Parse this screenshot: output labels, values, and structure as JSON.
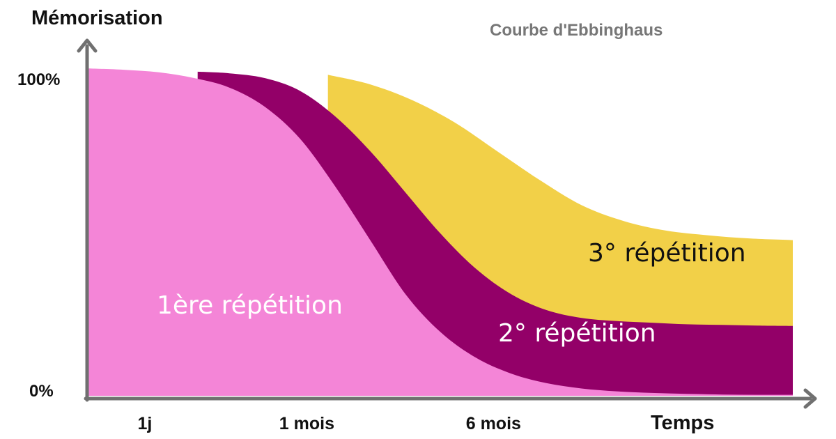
{
  "chart_data": {
    "type": "area",
    "title": "Courbe d'Ebbinghaus",
    "ylabel": "Mémorisation",
    "xlabel": "Temps",
    "y_ticks": [
      "100%",
      "0%"
    ],
    "x_ticks": [
      "1j",
      "1 mois",
      "6 mois"
    ],
    "x_tick_positions": [
      0.08,
      0.31,
      0.575
    ],
    "ylim": [
      0,
      100
    ],
    "xlim": [
      0,
      1
    ],
    "grid": false,
    "legend": "none",
    "series": [
      {
        "name": "3° répétition",
        "color": "#F2D048",
        "label_color": "#111111",
        "x": [
          0.34,
          0.4,
          0.46,
          0.52,
          0.58,
          0.64,
          0.7,
          0.76,
          0.82,
          0.88,
          0.94,
          1.0
        ],
        "y": [
          101,
          98,
          93,
          86,
          77,
          68,
          60,
          55,
          52,
          50.5,
          49.5,
          49
        ]
      },
      {
        "name": "2° répétition",
        "color": "#930068",
        "label_color": "#FFFFFF",
        "x": [
          0.155,
          0.2,
          0.25,
          0.3,
          0.35,
          0.4,
          0.45,
          0.5,
          0.55,
          0.6,
          0.65,
          0.7,
          0.75,
          0.8,
          0.85,
          0.9,
          0.95,
          1.0
        ],
        "y": [
          102,
          101.5,
          100,
          96,
          88,
          77,
          64,
          51,
          40,
          32,
          27,
          24.5,
          23.5,
          23,
          22.5,
          22.3,
          22.1,
          22
        ]
      },
      {
        "name": "1ère répétition",
        "color": "#F485D7",
        "label_color": "#FFFFFF",
        "x": [
          0.0,
          0.05,
          0.1,
          0.15,
          0.2,
          0.25,
          0.3,
          0.35,
          0.4,
          0.45,
          0.5,
          0.55,
          0.6,
          0.65,
          0.7,
          0.75,
          0.8,
          0.85,
          0.9,
          0.95,
          1.0
        ],
        "y": [
          103,
          102.6,
          101.8,
          100,
          97,
          91,
          81,
          66,
          49,
          32,
          20,
          12,
          7,
          4,
          2.3,
          1.4,
          0.9,
          0.6,
          0.4,
          0.3,
          0.3
        ]
      }
    ]
  }
}
